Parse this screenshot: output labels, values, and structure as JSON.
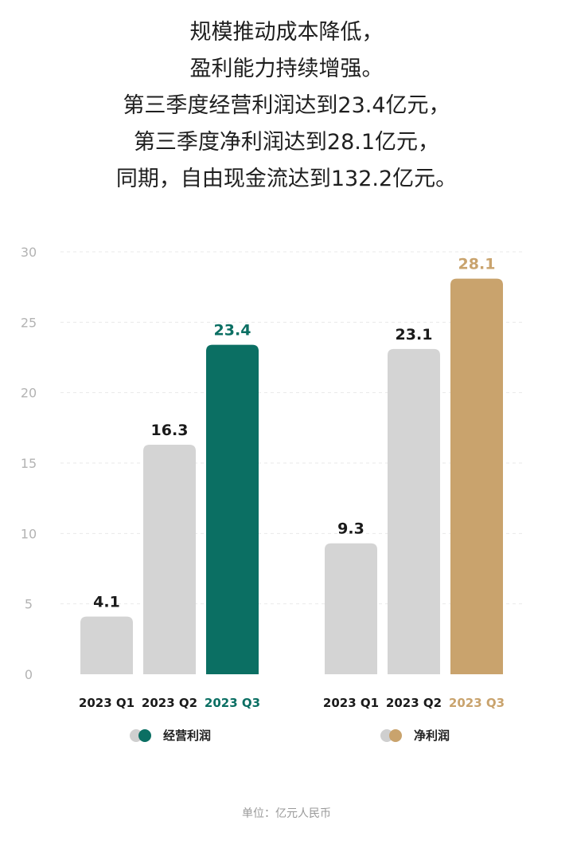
{
  "headline": [
    "规模推动成本降低，",
    "盈利能力持续增强。",
    "第三季度经营利润达到23.4亿元，",
    "第三季度净利润达到28.1亿元，",
    "同期，自由现金流达到132.2亿元。"
  ],
  "chart_data": {
    "type": "bar",
    "ylim": [
      0,
      30
    ],
    "yticks": [
      "0",
      "5",
      "10",
      "15",
      "20",
      "25",
      "30"
    ],
    "grid": true,
    "groups": [
      {
        "legend_label": "经营利润",
        "accent_color": "#0b6f63",
        "categories": [
          "2023 Q1",
          "2023 Q2",
          "2023 Q3"
        ],
        "values": [
          4.1,
          16.3,
          23.4
        ],
        "value_labels": [
          "4.1",
          "16.3",
          "23.4"
        ]
      },
      {
        "legend_label": "净利润",
        "accent_color": "#c9a36d",
        "categories": [
          "2023 Q1",
          "2023 Q2",
          "2023 Q3"
        ],
        "values": [
          9.3,
          23.1,
          28.1
        ],
        "value_labels": [
          "9.3",
          "23.1",
          "28.1"
        ]
      }
    ],
    "base_color": "#d4d4d4"
  },
  "footnote": "单位：亿元人民币"
}
